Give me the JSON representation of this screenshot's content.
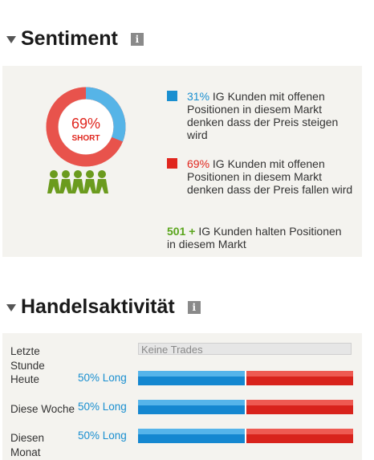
{
  "sentiment": {
    "title": "Sentiment",
    "info_icon": "info-icon",
    "donut": {
      "percent": "69%",
      "label": "SHORT",
      "short_fraction": 0.69,
      "long_fraction": 0.31,
      "colors": {
        "long": "#1a8fd0",
        "short": "#e0261e"
      }
    },
    "people_icon": "people-group-icon",
    "legend": {
      "long_pct": "31%",
      "long_text": "IG Kunden mit offenen Positionen in diesem Markt denken dass der Preis steigen wird",
      "short_pct": "69%",
      "short_text": "IG Kunden mit offenen Positionen in diesem Markt denken dass der Preis fallen wird",
      "count": "501 +",
      "count_text": "IG Kunden halten Positionen in diesem Markt"
    }
  },
  "activity": {
    "title": "Handelsaktivität",
    "info_icon": "info-icon",
    "rows": [
      {
        "label": "Letzte Stunde",
        "no_trades": "Keine Trades"
      },
      {
        "label": "Heute",
        "pct": "50% Long",
        "long_fraction": 0.5
      },
      {
        "label": "Diese Woche",
        "pct": "50% Long",
        "long_fraction": 0.5
      },
      {
        "label": "Diesen Monat",
        "pct": "50% Long",
        "long_fraction": 0.5
      }
    ]
  }
}
